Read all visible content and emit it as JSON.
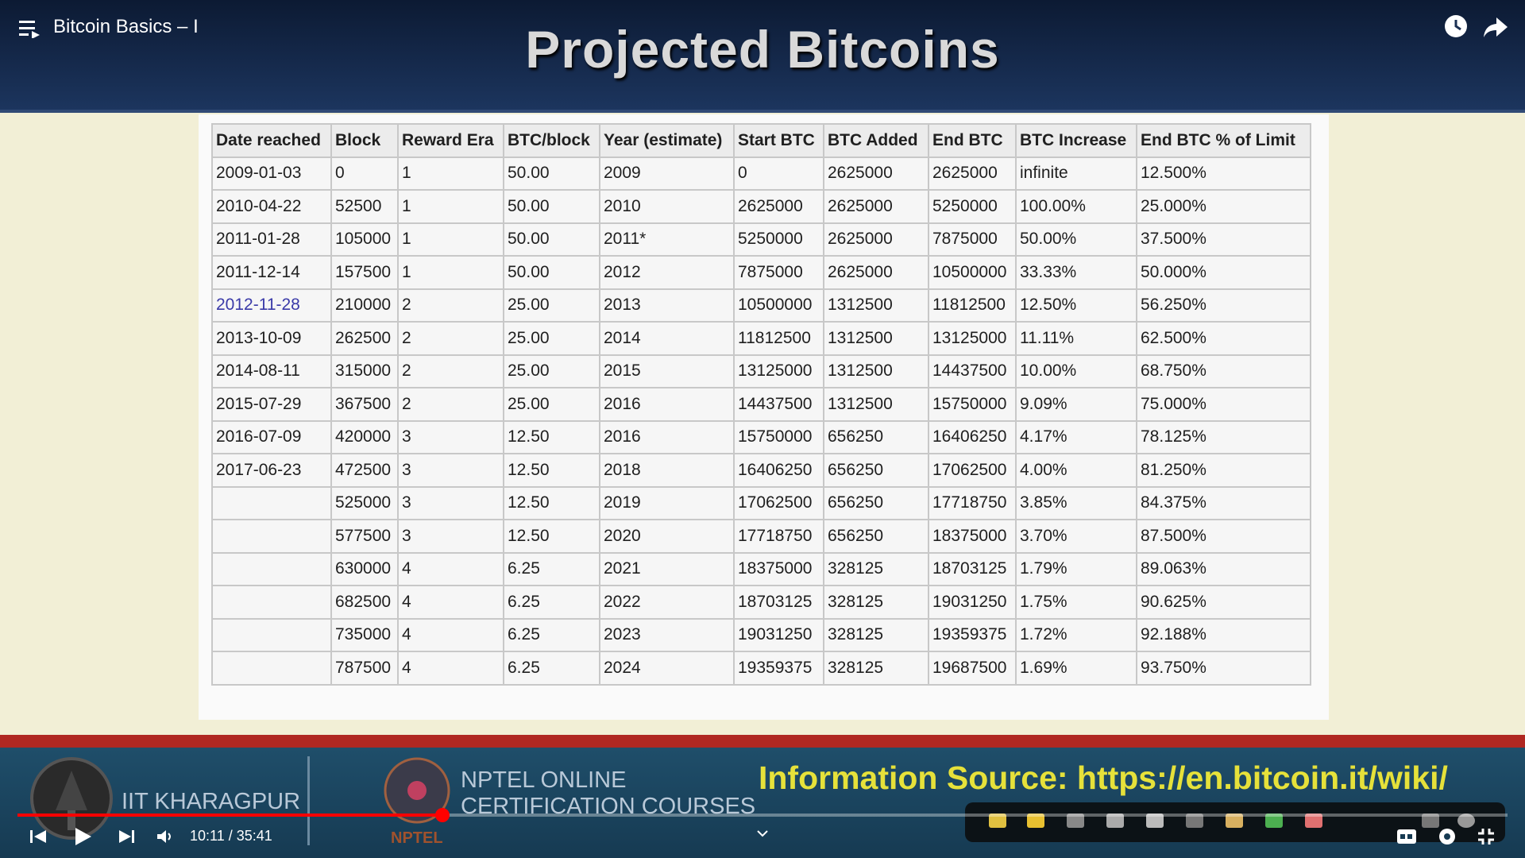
{
  "player": {
    "video_title": "Bitcoin Basics – I",
    "time": "10:11 / 35:41"
  },
  "slide": {
    "title": "Projected Bitcoins",
    "table": {
      "headers": [
        "Date reached",
        "Block",
        "Reward Era",
        "BTC/block",
        "Year (estimate)",
        "Start BTC",
        "BTC Added",
        "End BTC",
        "BTC Increase",
        "End BTC % of Limit"
      ],
      "rows": [
        [
          "2009-01-03",
          "0",
          "1",
          "50.00",
          "2009",
          "0",
          "2625000",
          "2625000",
          "infinite",
          "12.500%"
        ],
        [
          "2010-04-22",
          "52500",
          "1",
          "50.00",
          "2010",
          "2625000",
          "2625000",
          "5250000",
          "100.00%",
          "25.000%"
        ],
        [
          "2011-01-28",
          "105000",
          "1",
          "50.00",
          "2011*",
          "5250000",
          "2625000",
          "7875000",
          "50.00%",
          "37.500%"
        ],
        [
          "2011-12-14",
          "157500",
          "1",
          "50.00",
          "2012",
          "7875000",
          "2625000",
          "10500000",
          "33.33%",
          "50.000%"
        ],
        [
          "2012-11-28",
          "210000",
          "2",
          "25.00",
          "2013",
          "10500000",
          "1312500",
          "11812500",
          "12.50%",
          "56.250%"
        ],
        [
          "2013-10-09",
          "262500",
          "2",
          "25.00",
          "2014",
          "11812500",
          "1312500",
          "13125000",
          "11.11%",
          "62.500%"
        ],
        [
          "2014-08-11",
          "315000",
          "2",
          "25.00",
          "2015",
          "13125000",
          "1312500",
          "14437500",
          "10.00%",
          "68.750%"
        ],
        [
          "2015-07-29",
          "367500",
          "2",
          "25.00",
          "2016",
          "14437500",
          "1312500",
          "15750000",
          "9.09%",
          "75.000%"
        ],
        [
          "2016-07-09",
          "420000",
          "3",
          "12.50",
          "2016",
          "15750000",
          "656250",
          "16406250",
          "4.17%",
          "78.125%"
        ],
        [
          "2017-06-23",
          "472500",
          "3",
          "12.50",
          "2018",
          "16406250",
          "656250",
          "17062500",
          "4.00%",
          "81.250%"
        ],
        [
          null,
          "525000",
          "3",
          "12.50",
          "2019",
          "17062500",
          "656250",
          "17718750",
          "3.85%",
          "84.375%"
        ],
        [
          null,
          "577500",
          "3",
          "12.50",
          "2020",
          "17718750",
          "656250",
          "18375000",
          "3.70%",
          "87.500%"
        ],
        [
          null,
          "630000",
          "4",
          "6.25",
          "2021",
          "18375000",
          "328125",
          "18703125",
          "1.79%",
          "89.063%"
        ],
        [
          null,
          "682500",
          "4",
          "6.25",
          "2022",
          "18703125",
          "328125",
          "19031250",
          "1.75%",
          "90.625%"
        ],
        [
          null,
          "735000",
          "4",
          "6.25",
          "2023",
          "19031250",
          "328125",
          "19359375",
          "1.72%",
          "92.188%"
        ],
        [
          null,
          "787500",
          "4",
          "6.25",
          "2024",
          "19359375",
          "328125",
          "19687500",
          "1.69%",
          "93.750%"
        ]
      ]
    }
  },
  "footer": {
    "institute": "IIT KHARAGPUR",
    "nptel_line1": "NPTEL ONLINE",
    "nptel_line2": "CERTIFICATION COURSES",
    "nptel_logo": "NPTEL",
    "source": "Information Source: https://en.bitcoin.it/wiki/"
  }
}
